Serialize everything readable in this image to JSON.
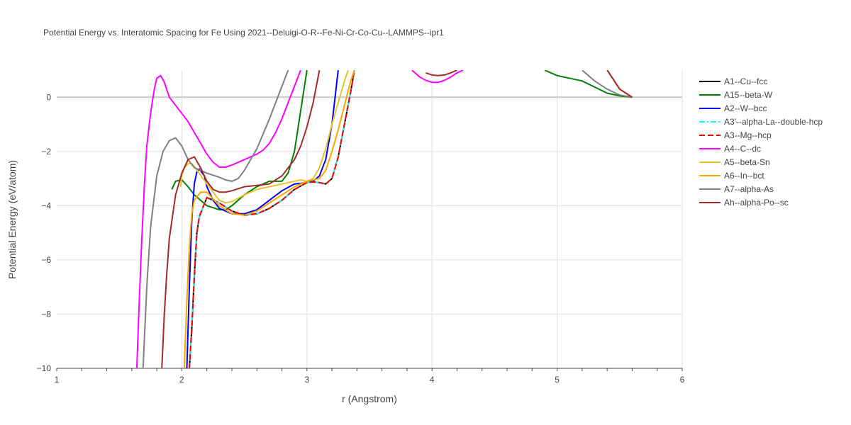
{
  "chart_data": {
    "type": "line",
    "title": "Potential Energy vs. Interatomic Spacing for Fe Using 2021--Deluigi-O-R--Fe-Ni-Cr-Co-Cu--LAMMPS--ipr1",
    "xlabel": "r (Angstrom)",
    "ylabel": "Potential Energy (eV/atom)",
    "xlim": [
      1,
      6
    ],
    "ylim": [
      -10,
      1
    ],
    "xticks": [
      1,
      2,
      3,
      4,
      5,
      6
    ],
    "yticks": [
      -10,
      -8,
      -6,
      -4,
      -2,
      0
    ],
    "xtick_labels": [
      "1",
      "2",
      "3",
      "4",
      "5",
      "6"
    ],
    "ytick_labels": [
      "−10",
      "−8",
      "−6",
      "−4",
      "−2",
      "0"
    ],
    "grid": true,
    "legend_position": "right",
    "series": [
      {
        "name": "A1--Cu--fcc",
        "color": "#000000",
        "dash": "solid",
        "x": [
          2.06,
          2.08,
          2.1,
          2.12,
          2.14,
          2.2,
          2.3,
          2.4,
          2.5,
          2.6,
          2.7,
          2.8,
          2.9,
          3.0,
          3.05,
          3.1,
          3.15,
          3.2,
          3.25,
          3.3,
          3.35,
          3.38
        ],
        "y": [
          -10,
          -8.5,
          -6.6,
          -5.0,
          -4.4,
          -3.7,
          -3.9,
          -4.2,
          -4.35,
          -4.3,
          -4.1,
          -3.8,
          -3.4,
          -3.15,
          -3.12,
          -3.15,
          -3.2,
          -3.0,
          -2.2,
          -1.0,
          0.2,
          1.0
        ]
      },
      {
        "name": "A15--beta-W",
        "color": "#008000",
        "dash": "solid",
        "x": [
          1.92,
          1.95,
          2.0,
          2.05,
          2.1,
          2.2,
          2.3,
          2.35,
          2.4,
          2.5,
          2.6,
          2.7,
          2.8,
          2.85,
          2.9,
          2.95,
          3.0,
          4.9,
          5.0,
          5.2,
          5.4,
          5.5,
          5.6
        ],
        "y": [
          -3.4,
          -3.1,
          -3.05,
          -3.3,
          -3.6,
          -4.0,
          -4.15,
          -4.15,
          -4.0,
          -3.6,
          -3.3,
          -3.1,
          -3.1,
          -2.8,
          -2.0,
          -0.5,
          1.0,
          1.0,
          0.8,
          0.6,
          0.15,
          0.05,
          0.0
        ]
      },
      {
        "name": "A2--W--bcc",
        "color": "#0000ff",
        "dash": "solid",
        "x": [
          2.04,
          2.06,
          2.08,
          2.1,
          2.12,
          2.14,
          2.18,
          2.2,
          2.25,
          2.3,
          2.4,
          2.5,
          2.6,
          2.7,
          2.8,
          2.9,
          3.0,
          3.05,
          3.1,
          3.15,
          3.2,
          3.25,
          5.4,
          5.5,
          5.6
        ],
        "y": [
          -10,
          -7.0,
          -4.5,
          -3.2,
          -2.75,
          -2.65,
          -2.9,
          -3.3,
          -3.8,
          -4.1,
          -4.3,
          -4.3,
          -4.15,
          -3.8,
          -3.45,
          -3.2,
          -3.15,
          -3.1,
          -2.9,
          -2.3,
          -1.0,
          1.0,
          1.0,
          0.3,
          0.0
        ]
      },
      {
        "name": "A3'--alpha-La--double-hcp",
        "color": "#00ffff",
        "dash": "dashdot",
        "x": [
          2.06,
          2.08,
          2.1,
          2.12,
          2.14,
          2.2,
          2.3,
          2.4,
          2.5,
          2.6,
          2.7,
          2.8,
          2.9,
          3.0,
          3.05,
          3.1,
          3.15,
          3.2,
          3.25,
          3.3,
          3.35,
          3.38,
          5.4,
          5.5,
          5.6
        ],
        "y": [
          -10,
          -8.4,
          -6.5,
          -5.0,
          -4.4,
          -3.7,
          -3.9,
          -4.2,
          -4.35,
          -4.3,
          -4.1,
          -3.8,
          -3.4,
          -3.15,
          -3.12,
          -3.15,
          -3.2,
          -3.0,
          -2.2,
          -1.0,
          0.2,
          1.0,
          1.0,
          0.3,
          0.0
        ]
      },
      {
        "name": "A3--Mg--hcp",
        "color": "#ff0000",
        "dash": "dash",
        "x": [
          2.06,
          2.08,
          2.1,
          2.12,
          2.14,
          2.2,
          2.3,
          2.4,
          2.5,
          2.6,
          2.7,
          2.8,
          2.9,
          3.0,
          3.05,
          3.1,
          3.15,
          3.2,
          3.25,
          3.3,
          3.35,
          3.38
        ],
        "y": [
          -10,
          -8.5,
          -6.6,
          -5.0,
          -4.4,
          -3.7,
          -3.9,
          -4.2,
          -4.35,
          -4.3,
          -4.1,
          -3.8,
          -3.4,
          -3.15,
          -3.12,
          -3.15,
          -3.2,
          -3.0,
          -2.2,
          -1.0,
          0.2,
          1.0
        ]
      },
      {
        "name": "A4--C--dc",
        "color": "#ff00ff",
        "dash": "solid",
        "x": [
          1.64,
          1.66,
          1.68,
          1.7,
          1.72,
          1.75,
          1.78,
          1.8,
          1.83,
          1.86,
          1.9,
          1.95,
          2.0,
          2.05,
          2.1,
          2.15,
          2.2,
          2.25,
          2.3,
          2.35,
          2.4,
          2.5,
          2.6,
          2.65,
          2.7,
          2.75,
          2.8,
          2.85,
          2.9,
          2.95,
          3.84,
          3.9,
          3.95,
          4.0,
          4.05,
          4.1,
          4.15,
          4.2,
          4.25
        ],
        "y": [
          -10,
          -7.5,
          -5.2,
          -3.3,
          -1.8,
          -0.6,
          0.3,
          0.7,
          0.8,
          0.55,
          0.0,
          -0.3,
          -0.6,
          -0.9,
          -1.3,
          -1.7,
          -2.1,
          -2.4,
          -2.58,
          -2.58,
          -2.5,
          -2.3,
          -2.1,
          -1.95,
          -1.7,
          -1.3,
          -0.8,
          -0.2,
          0.4,
          1.0,
          1.0,
          0.75,
          0.62,
          0.55,
          0.55,
          0.62,
          0.75,
          0.9,
          1.0
        ]
      },
      {
        "name": "A5--beta-Sn",
        "color": "#e6c229",
        "dash": "solid",
        "x": [
          1.99,
          2.0,
          2.02,
          2.05,
          2.08,
          2.1,
          2.2,
          2.3,
          2.35,
          2.4,
          2.5,
          2.6,
          2.7,
          2.8,
          2.9,
          2.95,
          3.0,
          3.05,
          3.1,
          3.15,
          3.2,
          3.25,
          3.3,
          3.33,
          5.4,
          5.5,
          5.6
        ],
        "y": [
          -3.3,
          -2.9,
          -2.6,
          -2.45,
          -2.45,
          -2.55,
          -3.2,
          -3.8,
          -3.9,
          -3.85,
          -3.6,
          -3.4,
          -3.3,
          -3.2,
          -3.1,
          -3.05,
          -3.1,
          -3.0,
          -2.6,
          -1.9,
          -1.0,
          -0.2,
          0.6,
          1.0,
          1.0,
          0.3,
          0.0
        ]
      },
      {
        "name": "A6--In--bct",
        "color": "#ffa500",
        "dash": "solid",
        "x": [
          2.02,
          2.04,
          2.06,
          2.08,
          2.1,
          2.15,
          2.2,
          2.3,
          2.4,
          2.5,
          2.6,
          2.7,
          2.8,
          2.9,
          2.95,
          3.0,
          3.05,
          3.1,
          3.15,
          3.2,
          3.25,
          3.3,
          3.35,
          3.38,
          5.4,
          5.5,
          5.6
        ],
        "y": [
          -10,
          -7.5,
          -5.5,
          -4.3,
          -3.8,
          -3.5,
          -3.5,
          -4.0,
          -4.3,
          -4.35,
          -4.2,
          -3.9,
          -3.6,
          -3.3,
          -3.2,
          -3.1,
          -3.05,
          -3.0,
          -2.7,
          -2.0,
          -1.2,
          -0.3,
          0.6,
          1.0,
          1.0,
          0.3,
          0.0
        ]
      },
      {
        "name": "A7--alpha-As",
        "color": "#808080",
        "dash": "solid",
        "x": [
          1.69,
          1.72,
          1.75,
          1.8,
          1.85,
          1.9,
          1.95,
          2.0,
          2.05,
          2.1,
          2.2,
          2.3,
          2.35,
          2.4,
          2.45,
          2.5,
          2.6,
          2.7,
          2.8,
          2.85,
          5.2,
          5.3,
          5.4,
          5.5,
          5.6
        ],
        "y": [
          -10,
          -7.0,
          -4.8,
          -2.9,
          -2.0,
          -1.6,
          -1.5,
          -1.8,
          -2.3,
          -2.6,
          -2.8,
          -2.95,
          -3.05,
          -3.1,
          -3.0,
          -2.7,
          -1.9,
          -0.8,
          0.4,
          1.0,
          1.0,
          0.6,
          0.3,
          0.08,
          0.0
        ]
      },
      {
        "name": "Ah--alpha-Po--sc",
        "color": "#a52a2a",
        "dash": "solid",
        "x": [
          1.84,
          1.86,
          1.88,
          1.9,
          1.95,
          2.0,
          2.05,
          2.1,
          2.15,
          2.2,
          2.25,
          2.3,
          2.35,
          2.4,
          2.5,
          2.6,
          2.7,
          2.8,
          2.9,
          2.95,
          3.0,
          3.05,
          3.1,
          3.95,
          4.0,
          4.05,
          4.1,
          4.15,
          4.2,
          5.4,
          5.5,
          5.6
        ],
        "y": [
          -10,
          -8.0,
          -6.5,
          -5.2,
          -3.6,
          -2.8,
          -2.3,
          -2.2,
          -2.6,
          -3.1,
          -3.4,
          -3.5,
          -3.5,
          -3.45,
          -3.3,
          -3.25,
          -3.2,
          -2.9,
          -2.3,
          -1.8,
          -1.1,
          -0.2,
          1.0,
          0.9,
          0.82,
          0.8,
          0.82,
          0.9,
          1.0,
          1.0,
          0.3,
          0.0
        ]
      }
    ]
  }
}
